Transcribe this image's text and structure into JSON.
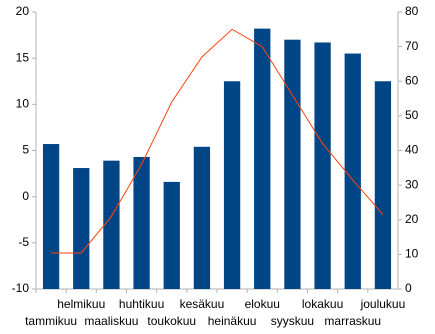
{
  "chart_data": {
    "type": "bar-line",
    "categories": [
      "tammikuu",
      "helmikuu",
      "maaliskuu",
      "huhtikuu",
      "toukokuu",
      "kesäkuu",
      "heinäkuu",
      "elokuu",
      "syyskuu",
      "lokakuu",
      "marraskuu",
      "joulukuu"
    ],
    "series": [
      {
        "type": "bar",
        "color": "#004586",
        "values": [
          5.7,
          3.1,
          3.9,
          4.3,
          1.6,
          5.4,
          12.5,
          18.2,
          17.0,
          16.7,
          15.5,
          12.5
        ]
      },
      {
        "type": "line",
        "axis": "y2",
        "color": "#ff420e",
        "values": [
          10.4,
          10.4,
          21,
          36,
          54,
          67,
          75,
          70,
          56,
          42,
          31.5,
          21.5
        ]
      }
    ],
    "ylim": [
      -10,
      20
    ],
    "yticks": [
      -10,
      -5,
      0,
      5,
      10,
      15,
      20
    ],
    "y2lim": [
      0,
      80
    ],
    "y2ticks": [
      0,
      10,
      20,
      30,
      40,
      50,
      60,
      70,
      80
    ]
  }
}
